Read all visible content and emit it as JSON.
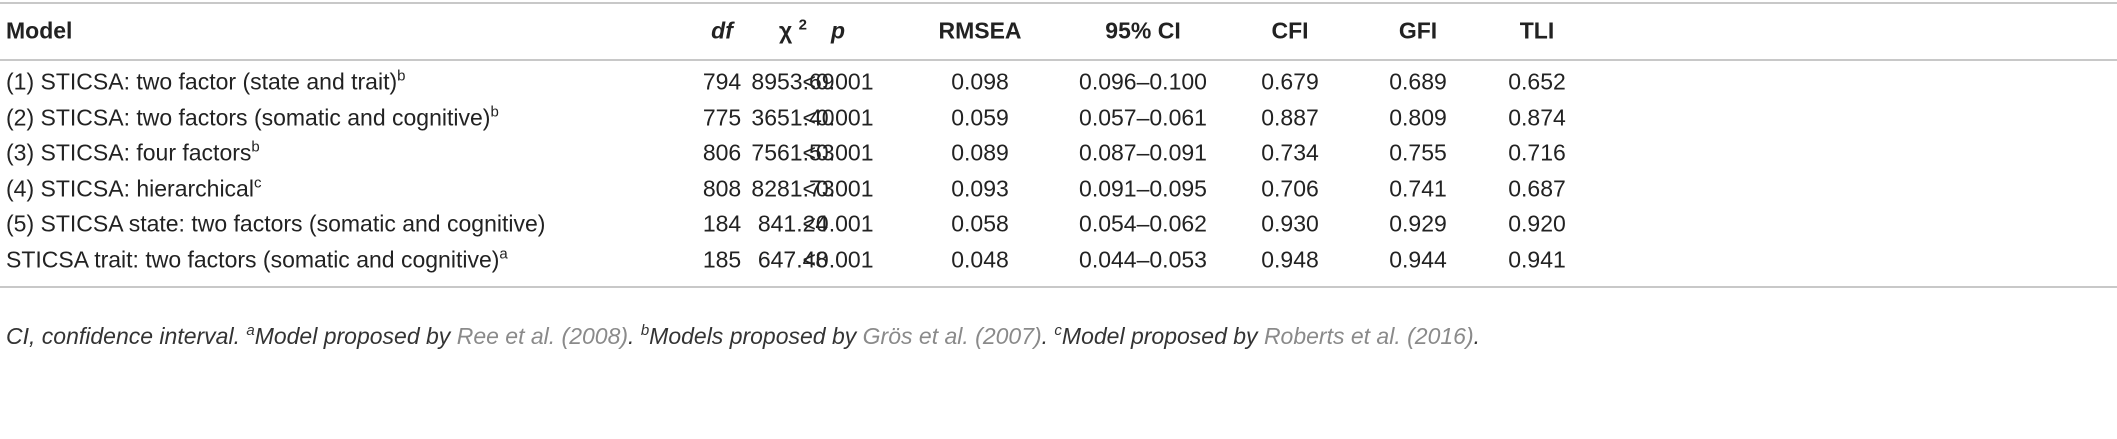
{
  "table": {
    "columns": [
      {
        "text": "Model"
      },
      {
        "text": "χ",
        "sup": "2"
      },
      {
        "text": "df"
      },
      {
        "text": "p"
      },
      {
        "text": "RMSEA"
      },
      {
        "text": "95% CI"
      },
      {
        "text": "CFI"
      },
      {
        "text": "GFI"
      },
      {
        "text": "TLI"
      }
    ],
    "rows": [
      {
        "model": "(1) STICSA: two factor (state and trait)",
        "sup": "b",
        "values": [
          "8953.69",
          "794",
          "<0.001",
          "0.098",
          "0.096–0.100",
          "0.679",
          "0.689",
          "0.652"
        ]
      },
      {
        "model": "(2) STICSA: two factors (somatic and cognitive)",
        "sup": "b",
        "values": [
          "3651.40",
          "775",
          "<0.001",
          "0.059",
          "0.057–0.061",
          "0.887",
          "0.809",
          "0.874"
        ]
      },
      {
        "model": "(3) STICSA: four factors",
        "sup": "b",
        "values": [
          "7561.53",
          "806",
          "<0.001",
          "0.089",
          "0.087–0.091",
          "0.734",
          "0.755",
          "0.716"
        ]
      },
      {
        "model": "(4) STICSA: hierarchical",
        "sup": "c",
        "values": [
          "8281.73",
          "808",
          "<0.001",
          "0.093",
          "0.091–0.095",
          "0.706",
          "0.741",
          "0.687"
        ]
      },
      {
        "model": "(5) STICSA state: two factors (somatic and cognitive)",
        "values": [
          "841.24",
          "184",
          "<0.001",
          "0.058",
          "0.054–0.062",
          "0.930",
          "0.929",
          "0.920"
        ]
      },
      {
        "model": "STICSA trait: two factors (somatic and cognitive)",
        "sup": "a",
        "values": [
          "647.48",
          "185",
          "<0.001",
          "0.048",
          "0.044–0.053",
          "0.948",
          "0.944",
          "0.941"
        ]
      }
    ]
  },
  "footnote": [
    {
      "text": "CI, confidence interval. ",
      "style": "plain"
    },
    {
      "text": "a",
      "style": "sup"
    },
    {
      "text": "Model proposed by ",
      "style": "plain"
    },
    {
      "text": "Ree et al. (2008)",
      "style": "ref"
    },
    {
      "text": ". ",
      "style": "plain"
    },
    {
      "text": "b",
      "style": "sup"
    },
    {
      "text": "Models proposed by ",
      "style": "plain"
    },
    {
      "text": "Grös et al. (2007)",
      "style": "ref"
    },
    {
      "text": ". ",
      "style": "plain"
    },
    {
      "text": "c",
      "style": "sup"
    },
    {
      "text": "Model proposed by ",
      "style": "plain"
    },
    {
      "text": "Roberts et al. (2016)",
      "style": "ref"
    },
    {
      "text": ".",
      "style": "plain"
    }
  ]
}
